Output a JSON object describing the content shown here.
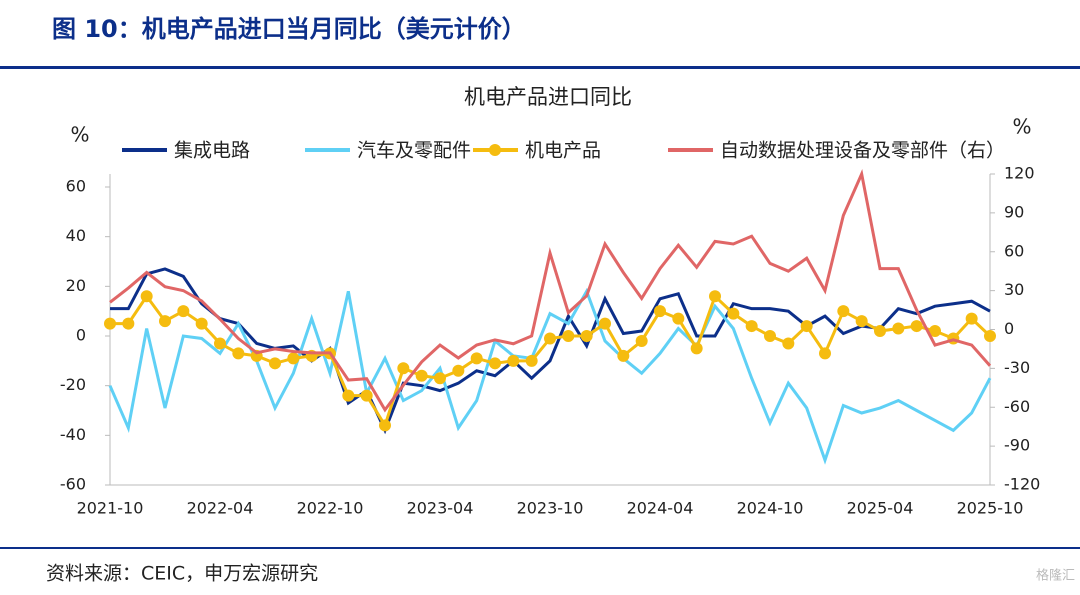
{
  "header": {
    "title": "图 10：机电产品进口当月同比（美元计价）"
  },
  "chart_data": {
    "type": "line",
    "title": "机电产品进口同比",
    "y_label": "%",
    "y2_label": "%",
    "categories": [
      "2021-10",
      null,
      null,
      null,
      null,
      null,
      "2022-04",
      null,
      null,
      null,
      null,
      null,
      "2022-10",
      null,
      null,
      null,
      null,
      null,
      "2023-04",
      null,
      null,
      null,
      null,
      null,
      "2023-10",
      null,
      null,
      null,
      null,
      null,
      "2024-04",
      null,
      null,
      null,
      null,
      null,
      "2024-10",
      null,
      null,
      null,
      null,
      null,
      "2025-04",
      null,
      null,
      null,
      null,
      null,
      "2025-10"
    ],
    "ylim": [
      -60,
      60
    ],
    "yticks": [
      -60,
      -40,
      -20,
      0,
      20,
      40,
      60
    ],
    "y2lim": [
      -120,
      120
    ],
    "y2ticks": [
      -120,
      -90,
      -60,
      -30,
      0,
      30,
      60,
      90,
      120
    ],
    "series": [
      {
        "name": "集成电路",
        "color": "#0c2f8a",
        "values": [
          11,
          11,
          25,
          27,
          24,
          13,
          7,
          5,
          -3,
          -5,
          -4,
          -10,
          -5,
          -27,
          -22,
          -38,
          -19,
          -20,
          -22,
          -19,
          -14,
          -16,
          -10,
          -17,
          -10,
          8,
          -4,
          15,
          1,
          2,
          15,
          17,
          0,
          0,
          13,
          11,
          11,
          10,
          4,
          8,
          1,
          4,
          3,
          11,
          9,
          12,
          13,
          14,
          10
        ]
      },
      {
        "name": "汽车及零配件",
        "color": "#5fd0f5",
        "values": [
          -20,
          -37,
          3,
          -29,
          0,
          -1,
          -7,
          5,
          -10,
          -29,
          -15,
          7,
          -15,
          18,
          -23,
          -9,
          -26,
          -22,
          -13,
          -37,
          -26,
          -2,
          -8,
          -9,
          9,
          5,
          18,
          -2,
          -9,
          -15,
          -7,
          3,
          -4,
          12,
          3,
          -17,
          -35,
          -19,
          -29,
          -50,
          -28,
          -31,
          -29,
          -26,
          -30,
          -34,
          -38,
          -31,
          -17
        ]
      },
      {
        "name": "机电产品",
        "color": "#f5bc0f",
        "marker": true,
        "values": [
          5,
          5,
          16,
          6,
          10,
          5,
          -3,
          -7,
          -8,
          -11,
          -9,
          -8,
          -7,
          -24,
          -24,
          -36,
          -13,
          -16,
          -17,
          -14,
          -9,
          -11,
          -10,
          -10,
          -1,
          0,
          0,
          5,
          -8,
          -2,
          10,
          7,
          -5,
          16,
          9,
          4,
          0,
          -3,
          4,
          -7,
          10,
          6,
          2,
          3,
          4,
          2,
          -1,
          7,
          0
        ]
      },
      {
        "name": "自动数据处理设备及零部件（右）",
        "color": "#e06666",
        "axis": "y2",
        "values": [
          21,
          32,
          44,
          33,
          30,
          22,
          8,
          -7,
          -18,
          -15,
          -17,
          -18,
          -18,
          -39,
          -38,
          -62,
          -43,
          -25,
          -12,
          -22,
          -12,
          -8,
          -11,
          -5,
          59,
          13,
          26,
          66,
          44,
          24,
          47,
          65,
          48,
          68,
          66,
          72,
          51,
          45,
          55,
          30,
          88,
          120,
          47,
          47,
          15,
          -12,
          -8,
          -12,
          -28
        ]
      }
    ]
  },
  "footer": {
    "source": "资料来源：CEIC，申万宏源研究",
    "watermark": "格隆汇"
  }
}
